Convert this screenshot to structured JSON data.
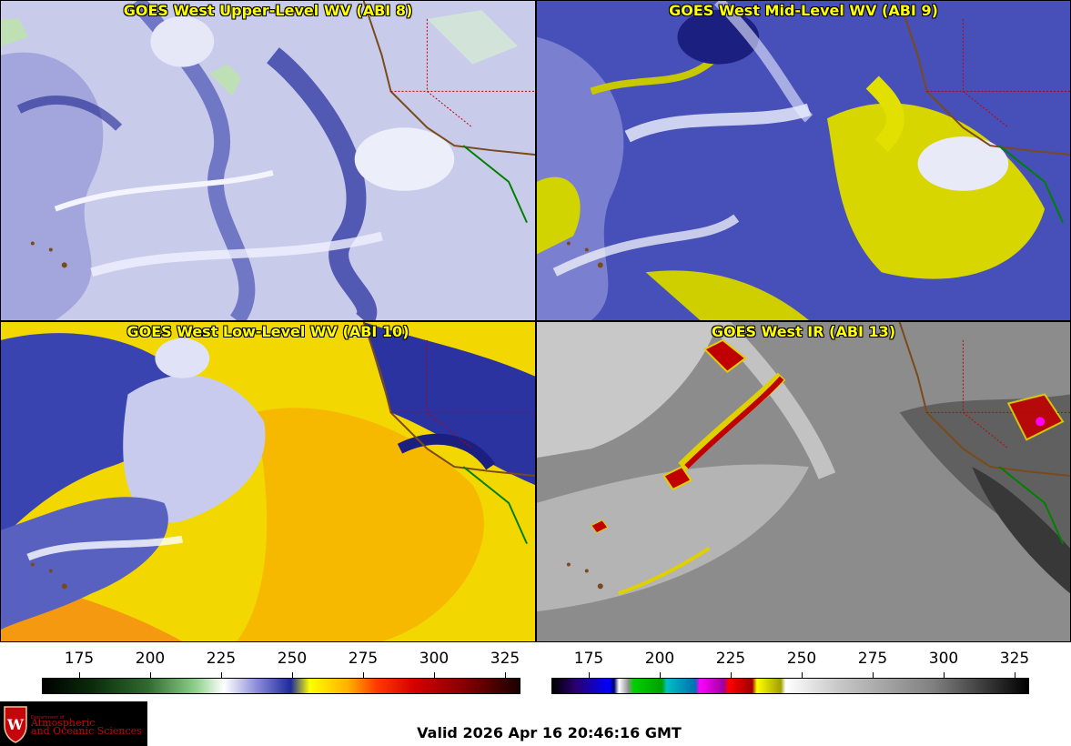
{
  "panels": [
    {
      "title": "GOES West Upper-Level WV (ABI 8)"
    },
    {
      "title": "GOES West Mid-Level WV (ABI 9)"
    },
    {
      "title": "GOES West Low-Level WV (ABI 10)"
    },
    {
      "title": "GOES West IR (ABI 13)"
    }
  ],
  "colorbars": {
    "wv": {
      "ticks": [
        "175",
        "200",
        "225",
        "250",
        "275",
        "300",
        "325"
      ]
    },
    "ir": {
      "ticks": [
        "175",
        "200",
        "225",
        "250",
        "275",
        "300",
        "325"
      ]
    }
  },
  "logo": {
    "line1": "Department of",
    "line2": "Atmospheric",
    "line3": "and Oceanic Sciences"
  },
  "valid_time": "Valid 2026 Apr 16 20:46:16 GMT",
  "colors": {
    "title_text": "#ffff00",
    "wv_dark": "#1e2a9a",
    "wv_light": "#d8daf2",
    "ir_gray": "#8c8c8c",
    "logo_red": "#c5050c"
  }
}
